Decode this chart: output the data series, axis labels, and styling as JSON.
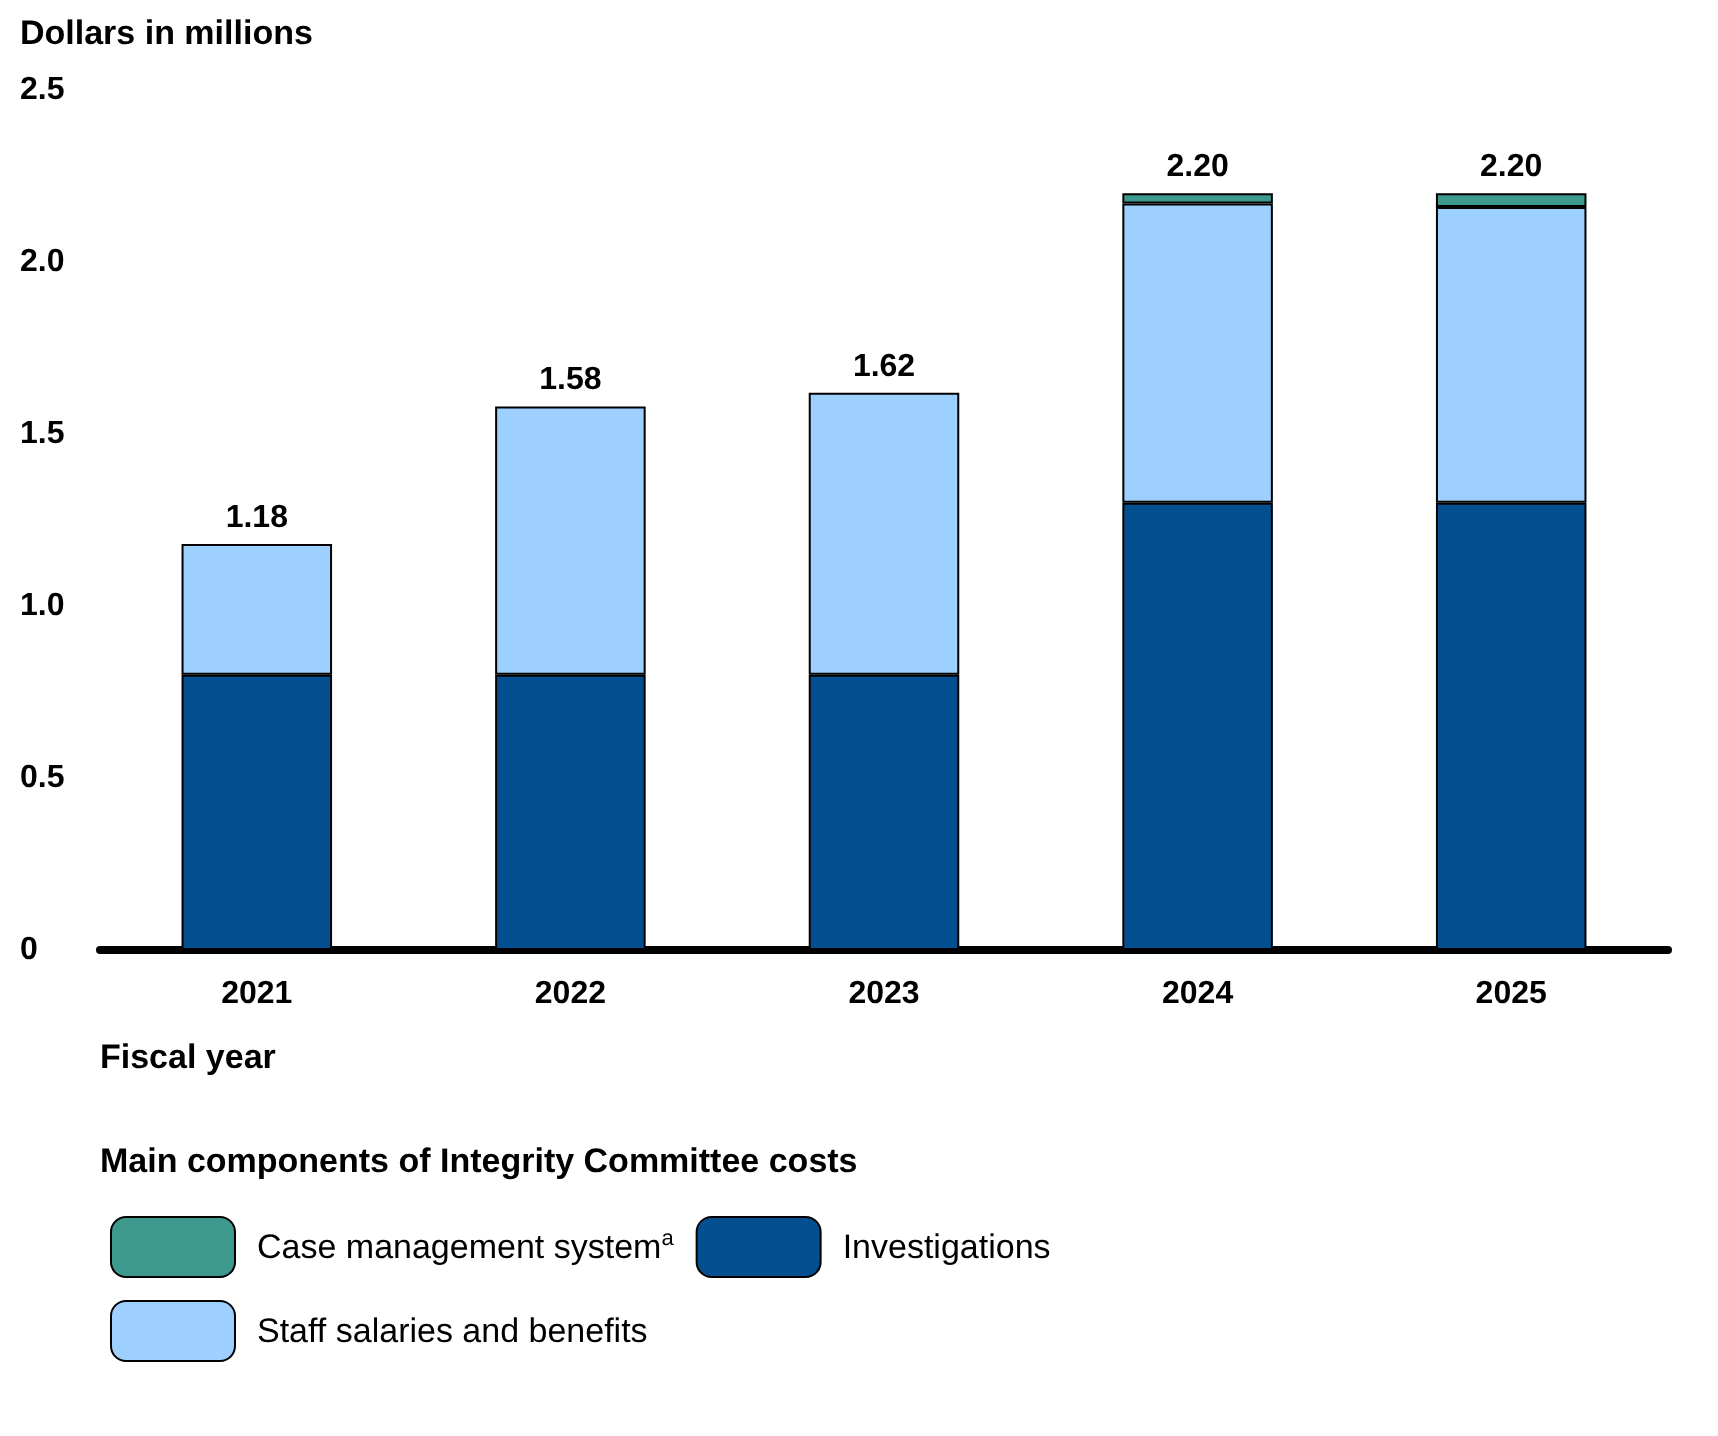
{
  "chart_data": {
    "type": "bar",
    "stacked": true,
    "ylabel": "Dollars in millions",
    "xlabel": "Fiscal year",
    "legend_title": "Main components of Integrity Committee costs",
    "categories": [
      "2021",
      "2022",
      "2023",
      "2024",
      "2025"
    ],
    "series": [
      {
        "name": "Investigations",
        "color": "#034f8f",
        "values": [
          0.8,
          0.8,
          0.8,
          1.3,
          1.3
        ]
      },
      {
        "name": "Staff salaries and benefits",
        "color": "#9dcfff",
        "values": [
          0.38,
          0.78,
          0.82,
          0.87,
          0.86
        ]
      },
      {
        "name": "Case management system$^{a}$",
        "color": "#3d998e",
        "values": [
          null,
          null,
          null,
          0.03,
          0.04
        ]
      }
    ],
    "totals": [
      "1.18",
      "1.58",
      "1.62",
      "2.20",
      "2.20"
    ],
    "ylim": [
      0,
      2.5
    ],
    "yticks": [
      {
        "value": 0,
        "label": "0"
      },
      {
        "value": 0.5,
        "label": "0.5"
      },
      {
        "value": 1,
        "label": "1.0"
      },
      {
        "value": 1.5,
        "label": "1.5"
      },
      {
        "value": 2,
        "label": "2.0"
      },
      {
        "value": 2.5,
        "label": "2.5"
      }
    ],
    "grid": false,
    "legend": "bottom"
  }
}
